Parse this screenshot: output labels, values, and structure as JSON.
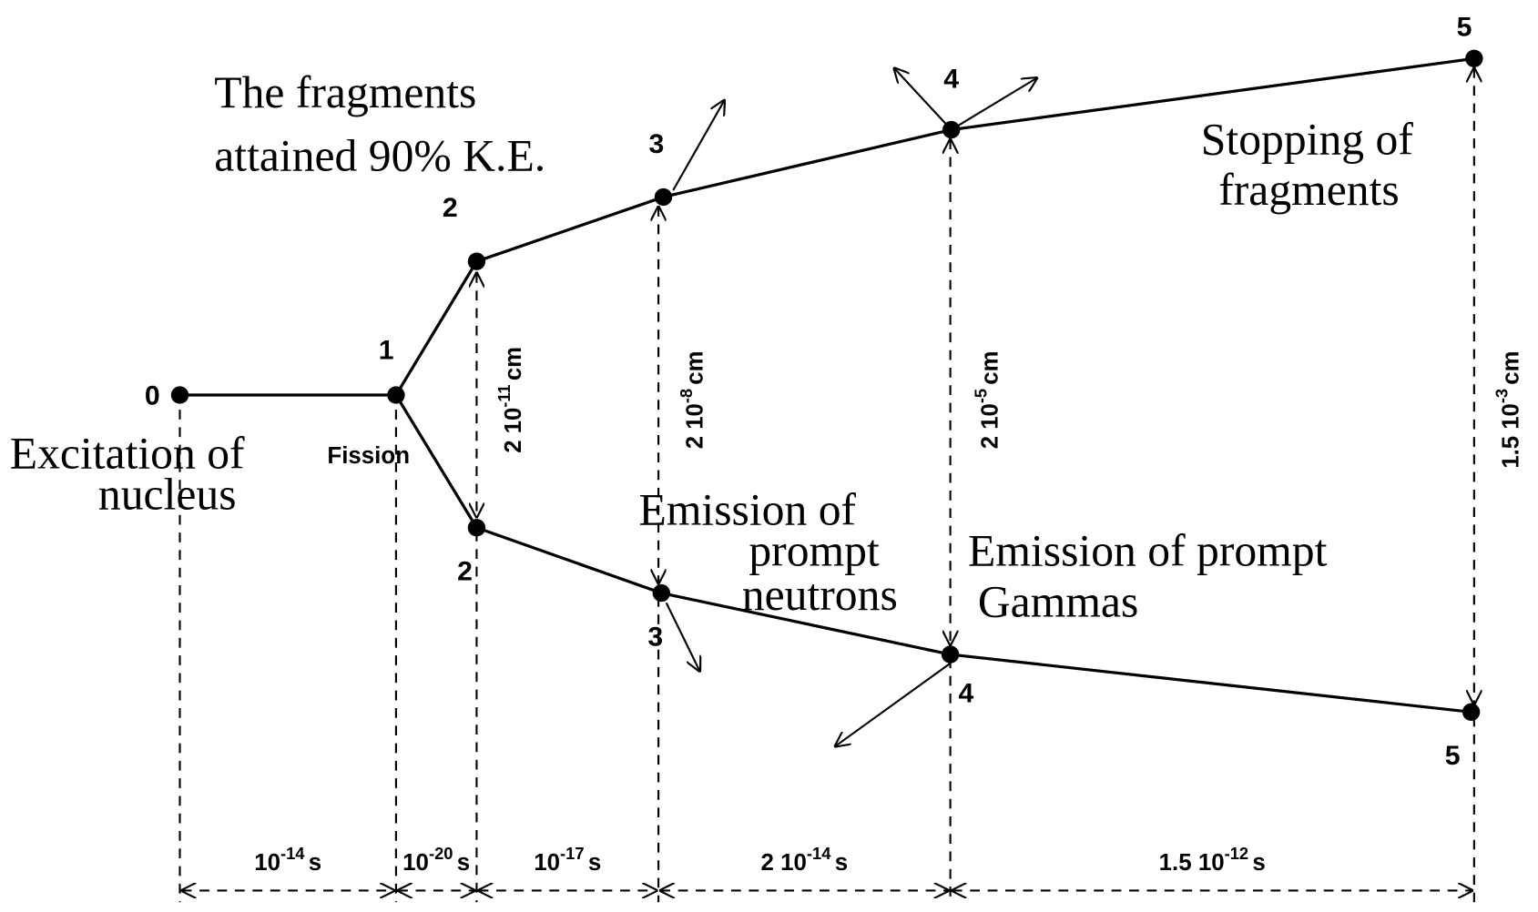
{
  "annotations": {
    "fragments_ke": [
      "The fragments",
      "attained 90% K.E."
    ],
    "stopping": [
      "Stopping of",
      "fragments"
    ],
    "excitation": [
      "Excitation of",
      "nucleus"
    ],
    "fission": "Fission",
    "neutrons": [
      "Emission of",
      "prompt",
      "neutrons"
    ],
    "gammas": [
      "Emission of prompt",
      "Gammas"
    ]
  },
  "nodes": [
    {
      "label": "0"
    },
    {
      "label": "1"
    },
    {
      "label": "2"
    },
    {
      "label": "2"
    },
    {
      "label": "3"
    },
    {
      "label": "3"
    },
    {
      "label": "4"
    },
    {
      "label": "4"
    },
    {
      "label": "5"
    },
    {
      "label": "5"
    }
  ],
  "times": [
    {
      "base": "10",
      "exp": "-14",
      "unit": "s"
    },
    {
      "base": "10",
      "exp": "-20",
      "unit": "s"
    },
    {
      "base": "10",
      "exp": "-17",
      "unit": "s"
    },
    {
      "coef": "2",
      "base": "10",
      "exp": "-14",
      "unit": "s"
    },
    {
      "coef": "1.5",
      "base": "10",
      "exp": "-12",
      "unit": "s"
    }
  ],
  "distances": [
    {
      "coef": "2",
      "base": "10",
      "exp": "-11",
      "unit": "cm"
    },
    {
      "coef": "2",
      "base": "10",
      "exp": "-8",
      "unit": "cm"
    },
    {
      "coef": "2",
      "base": "10",
      "exp": "-5",
      "unit": "cm"
    },
    {
      "coef": "1.5",
      "base": "10",
      "exp": "-3",
      "unit": "cm"
    }
  ]
}
